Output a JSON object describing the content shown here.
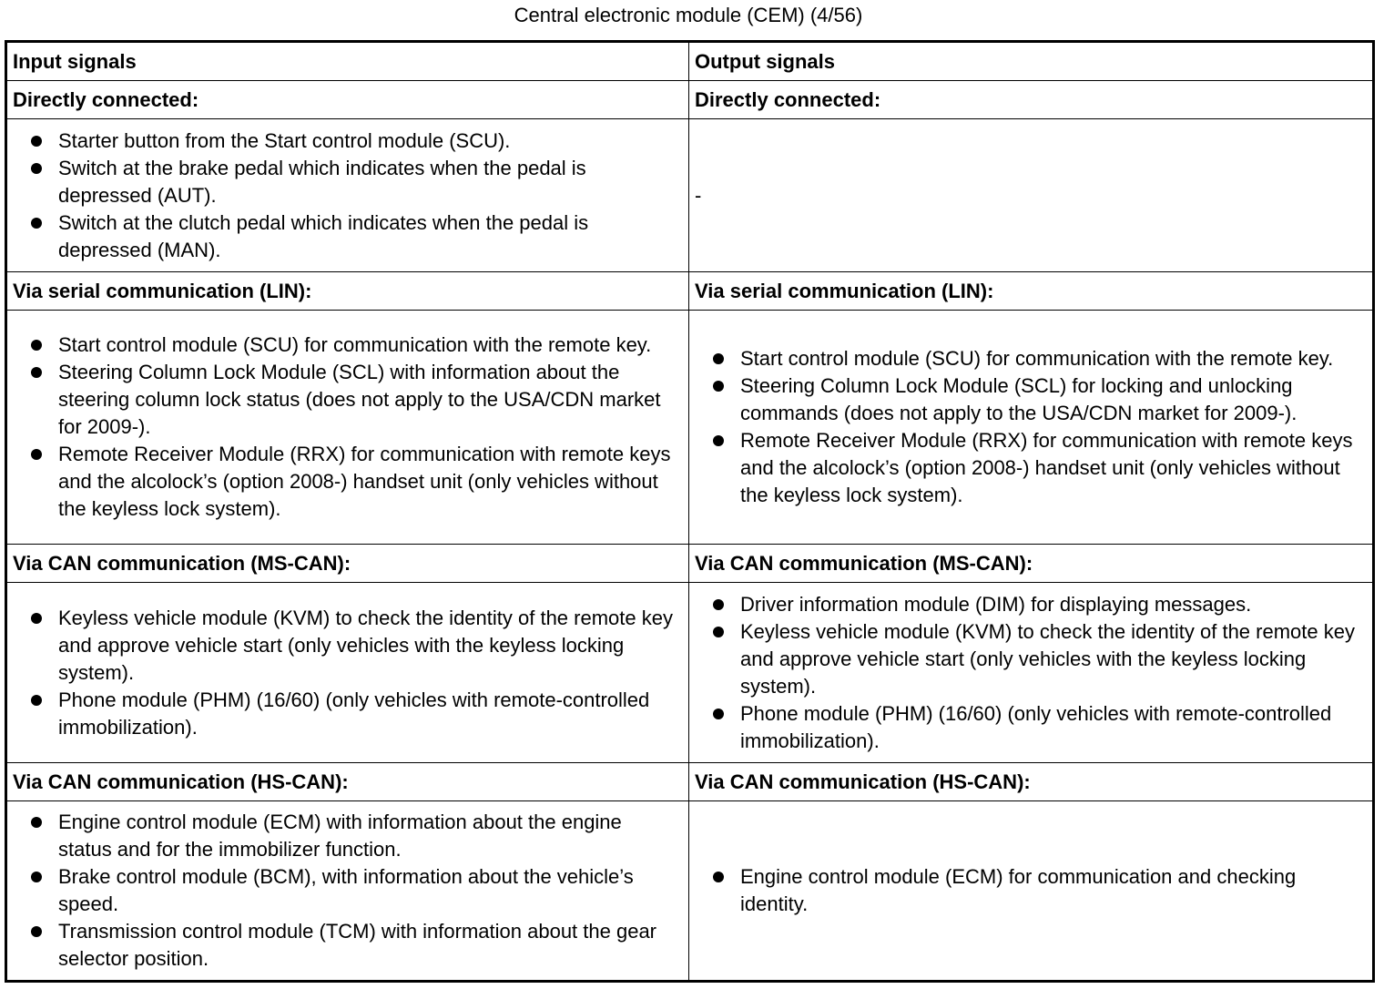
{
  "title": "Central electronic module (CEM) (4/56)",
  "headers": {
    "input": "Input signals",
    "output": "Output signals"
  },
  "sections": [
    {
      "input_heading": "Directly connected:",
      "output_heading": "Directly connected:",
      "input_items": [
        "Starter button from the Start control module (SCU).",
        "Switch at the brake pedal which indicates when the pedal is depressed (AUT).",
        "Switch at the clutch pedal which indicates when the pedal is depressed (MAN)."
      ],
      "output_items": [],
      "output_text": "-"
    },
    {
      "input_heading": "Via serial communication (LIN):",
      "output_heading": "Via serial communication (LIN):",
      "input_items": [
        "Start control module (SCU) for communication with the remote key.",
        "Steering Column Lock Module (SCL) with information about the steering column lock status (does not apply to the USA/CDN market for 2009-).",
        "Remote Receiver Module (RRX) for communication with remote keys and the alcolock’s (option 2008-) handset unit (only vehicles without the keyless lock system)."
      ],
      "output_items": [
        "Start control module (SCU) for communication with the remote key.",
        "Steering Column Lock Module (SCL) for locking and unlocking commands (does not apply to the USA/CDN market for 2009-).",
        "Remote Receiver Module (RRX) for communication with remote keys and the alcolock’s (option 2008-) handset unit (only vehicles without the keyless lock system)."
      ]
    },
    {
      "input_heading": "Via CAN communication (MS-CAN):",
      "output_heading": "Via CAN communication (MS-CAN):",
      "input_items": [
        "Keyless vehicle module (KVM) to check the identity of the remote key and approve vehicle start (only vehicles with the keyless locking system).",
        "Phone module (PHM) (16/60) (only vehicles with remote-controlled immobilization)."
      ],
      "output_items": [
        "Driver information module (DIM) for displaying messages.",
        "Keyless vehicle module (KVM) to check the identity of the remote key and approve vehicle start (only vehicles with the keyless locking system).",
        "Phone module (PHM) (16/60) (only vehicles with remote-controlled immobilization)."
      ]
    },
    {
      "input_heading": "Via CAN communication (HS-CAN):",
      "output_heading": "Via CAN communication (HS-CAN):",
      "input_items": [
        "Engine control module (ECM) with information about the engine status and for the immobilizer function.",
        "Brake control module (BCM), with information about the vehicle’s speed.",
        "Transmission control module (TCM) with information about the gear selector position."
      ],
      "output_items": [
        "Engine control module (ECM) for communication and checking identity."
      ]
    }
  ]
}
